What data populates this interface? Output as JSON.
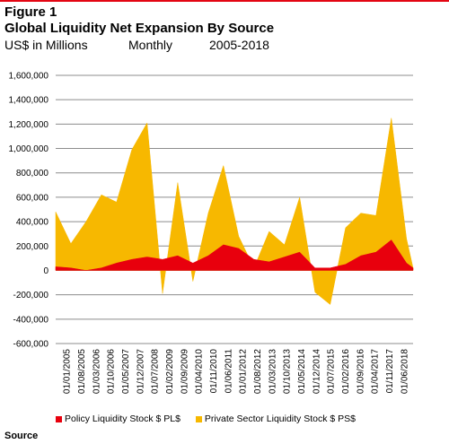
{
  "header": {
    "figure": "Figure 1",
    "title": "Global Liquidity Net Expansion By Source",
    "units": "US$ in Millions",
    "frequency": "Monthly",
    "period": "2005-2018"
  },
  "footer": {
    "source": "Source"
  },
  "colors": {
    "policy": "#e8000d",
    "private": "#f7b800",
    "grid": "#8c8c8c"
  },
  "chart_data": {
    "type": "area",
    "stacked": true,
    "grid": true,
    "legend_position": "bottom",
    "ylim": [
      -600000,
      1600000
    ],
    "y_ticks": [
      -600000,
      -400000,
      -200000,
      0,
      200000,
      400000,
      600000,
      800000,
      1000000,
      1200000,
      1400000,
      1600000
    ],
    "y_tick_labels": [
      "-600,000",
      "-400,000",
      "-200,000",
      "0",
      "200,000",
      "400,000",
      "600,000",
      "800,000",
      "1,000,000",
      "1,200,000",
      "1,400,000",
      "1,600,000"
    ],
    "x_tick_labels": [
      "01/01/2005",
      "01/08/2005",
      "01/03/2006",
      "01/10/2006",
      "01/05/2007",
      "01/12/2007",
      "01/07/2008",
      "01/02/2009",
      "01/09/2009",
      "01/04/2010",
      "01/11/2010",
      "01/06/2011",
      "01/01/2012",
      "01/08/2012",
      "01/03/2013",
      "01/10/2013",
      "01/05/2014",
      "01/12/2014",
      "01/07/2015",
      "01/02/2016",
      "01/09/2016",
      "01/04/2017",
      "01/11/2017",
      "01/06/2018"
    ],
    "series": [
      {
        "name": "Policy Liquidity Stock $ PL$",
        "points": [
          [
            "2005-01",
            30000
          ],
          [
            "2005-08",
            20000
          ],
          [
            "2006-03",
            0
          ],
          [
            "2006-10",
            20000
          ],
          [
            "2007-05",
            60000
          ],
          [
            "2007-12",
            90000
          ],
          [
            "2008-07",
            110000
          ],
          [
            "2009-02",
            90000
          ],
          [
            "2009-09",
            120000
          ],
          [
            "2010-04",
            60000
          ],
          [
            "2010-11",
            120000
          ],
          [
            "2011-06",
            210000
          ],
          [
            "2012-01",
            180000
          ],
          [
            "2012-08",
            90000
          ],
          [
            "2013-03",
            70000
          ],
          [
            "2013-10",
            110000
          ],
          [
            "2014-05",
            150000
          ],
          [
            "2014-12",
            20000
          ],
          [
            "2015-07",
            20000
          ],
          [
            "2016-02",
            50000
          ],
          [
            "2016-09",
            120000
          ],
          [
            "2017-04",
            150000
          ],
          [
            "2017-11",
            250000
          ],
          [
            "2018-06",
            60000
          ],
          [
            "2018-09",
            20000
          ]
        ]
      },
      {
        "name": "Private Sector Liquidity Stock $ PS$",
        "points": [
          [
            "2005-01",
            450000
          ],
          [
            "2005-08",
            200000
          ],
          [
            "2006-03",
            400000
          ],
          [
            "2006-10",
            600000
          ],
          [
            "2007-05",
            500000
          ],
          [
            "2007-12",
            900000
          ],
          [
            "2008-07",
            1100000
          ],
          [
            "2009-02",
            -280000
          ],
          [
            "2009-09",
            600000
          ],
          [
            "2010-04",
            -150000
          ],
          [
            "2010-11",
            350000
          ],
          [
            "2011-06",
            650000
          ],
          [
            "2012-01",
            100000
          ],
          [
            "2012-08",
            -70000
          ],
          [
            "2013-03",
            250000
          ],
          [
            "2013-10",
            100000
          ],
          [
            "2014-05",
            450000
          ],
          [
            "2014-12",
            -200000
          ],
          [
            "2015-07",
            -300000
          ],
          [
            "2016-02",
            300000
          ],
          [
            "2016-09",
            350000
          ],
          [
            "2017-04",
            300000
          ],
          [
            "2017-11",
            1000000
          ],
          [
            "2018-06",
            200000
          ],
          [
            "2018-09",
            0
          ]
        ]
      }
    ]
  }
}
